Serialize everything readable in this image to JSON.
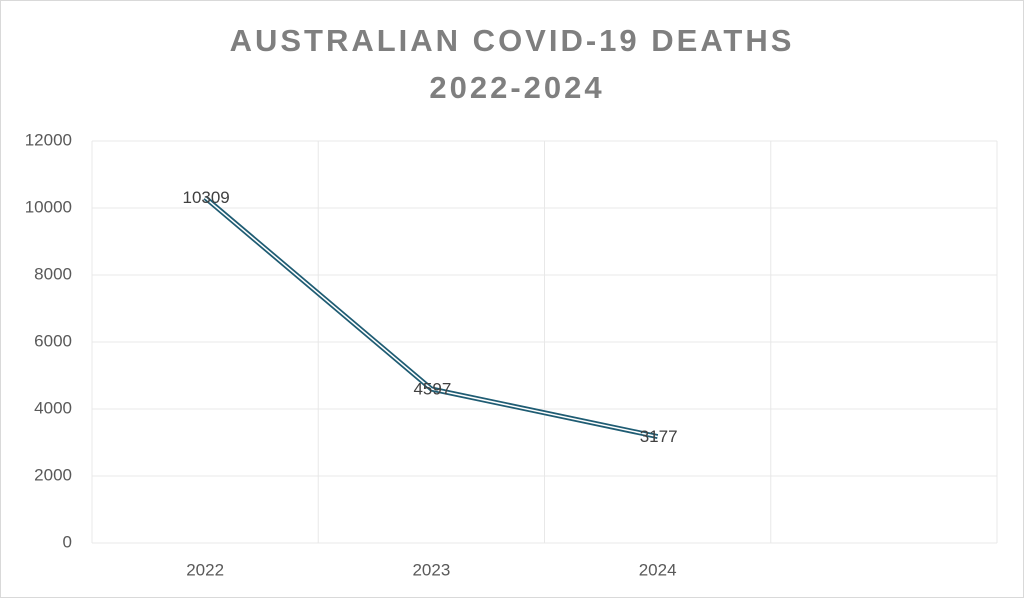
{
  "chart_data": {
    "type": "line",
    "title": [
      "AUSTRALIAN COVID-19 DEATHS",
      "2022-2024"
    ],
    "categories": [
      "2022",
      "2023",
      "2024",
      null
    ],
    "values": [
      10309,
      4597,
      3177,
      null
    ],
    "color": "#1f5c73",
    "ylim": [
      0,
      12000
    ],
    "yticks": [
      0,
      2000,
      4000,
      6000,
      8000,
      10000,
      12000
    ],
    "grid": true
  }
}
